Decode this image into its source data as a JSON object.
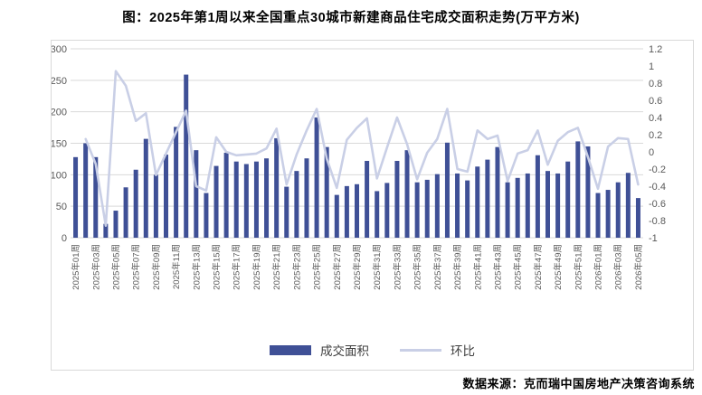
{
  "title": "图：2025年第1周以来全国重点30城市新建商品住宅成交面积走势(万平方米)",
  "source": "数据来源：克而瑞中国房地产决策咨询系统",
  "legend": {
    "bars_label": "成交面积",
    "line_label": "环比"
  },
  "colors": {
    "bar": "#3f5096",
    "line": "#c9cfe6",
    "grid": "#d9d9d9",
    "axis_text": "#595959",
    "border": "#d9d9d9",
    "title_text": "#000000"
  },
  "chart_data": {
    "type": "bar",
    "combo": "bar+line",
    "title": "图：2025年第1周以来全国重点30城市新建商品住宅成交面积走势(万平方米)",
    "categories": [
      "2025年01周",
      "2025年02周",
      "2025年03周",
      "2025年04周",
      "2025年05周",
      "2025年06周",
      "2025年07周",
      "2025年08周",
      "2025年09周",
      "2025年10周",
      "2025年11周",
      "2025年12周",
      "2025年13周",
      "2025年14周",
      "2025年15周",
      "2025年16周",
      "2025年17周",
      "2025年18周",
      "2025年19周",
      "2025年20周",
      "2025年21周",
      "2025年22周",
      "2025年23周",
      "2025年24周",
      "2025年25周",
      "2025年26周",
      "2025年27周",
      "2025年28周",
      "2025年29周",
      "2025年30周",
      "2025年31周",
      "2025年32周",
      "2025年33周",
      "2025年34周",
      "2025年35周",
      "2025年36周",
      "2025年37周",
      "2025年38周",
      "2025年39周",
      "2025年40周",
      "2025年41周",
      "2025年42周",
      "2025年43周",
      "2025年44周",
      "2025年45周",
      "2025年46周",
      "2025年47周",
      "2025年48周",
      "2025年49周",
      "2025年50周",
      "2025年51周",
      "2025年52周",
      "2026年01周",
      "2026年02周",
      "2026年03周",
      "2026年04周",
      "2026年05周"
    ],
    "x_tick_step": 2,
    "series": [
      {
        "name": "成交面积",
        "type": "bar",
        "axis": "left",
        "values": [
          128,
          150,
          128,
          22,
          43,
          80,
          108,
          157,
          100,
          132,
          176,
          259,
          139,
          71,
          114,
          135,
          121,
          117,
          121,
          126,
          158,
          81,
          106,
          126,
          191,
          144,
          68,
          82,
          85,
          122,
          74,
          87,
          122,
          139,
          88,
          92,
          101,
          151,
          102,
          91,
          113,
          124,
          144,
          88,
          95,
          102,
          131,
          106,
          102,
          121,
          153,
          145,
          71,
          76,
          88,
          103,
          63
        ]
      },
      {
        "name": "环比",
        "type": "line",
        "axis": "right",
        "values": [
          null,
          0.15,
          -0.14,
          -0.86,
          0.94,
          0.77,
          0.36,
          0.45,
          -0.27,
          -0.02,
          0.23,
          0.48,
          -0.4,
          -0.45,
          0.17,
          0.0,
          -0.04,
          -0.03,
          -0.02,
          0.04,
          0.27,
          -0.38,
          -0.03,
          0.25,
          0.5,
          -0.08,
          -0.42,
          0.14,
          0.28,
          0.39,
          -0.31,
          0.05,
          0.4,
          0.09,
          -0.32,
          -0.01,
          0.15,
          0.5,
          -0.2,
          -0.23,
          0.25,
          0.15,
          0.19,
          -0.34,
          -0.02,
          0.02,
          0.25,
          -0.15,
          0.13,
          0.23,
          0.28,
          -0.06,
          -0.43,
          0.06,
          0.16,
          0.15,
          -0.38
        ]
      }
    ],
    "left_axis": {
      "min": 0,
      "max": 300,
      "tick_interval": 50,
      "ticks": [
        "0",
        "50",
        "100",
        "150",
        "200",
        "250",
        "300"
      ]
    },
    "right_axis": {
      "min": -1,
      "max": 1.2,
      "tick_interval": 0.2,
      "ticks": [
        "-1",
        "-0.8",
        "-0.6",
        "-0.4",
        "-0.2",
        "0",
        "0.2",
        "0.4",
        "0.6",
        "0.8",
        "1",
        "1.2"
      ]
    },
    "grid": "horizontal",
    "legend_position": "bottom"
  }
}
